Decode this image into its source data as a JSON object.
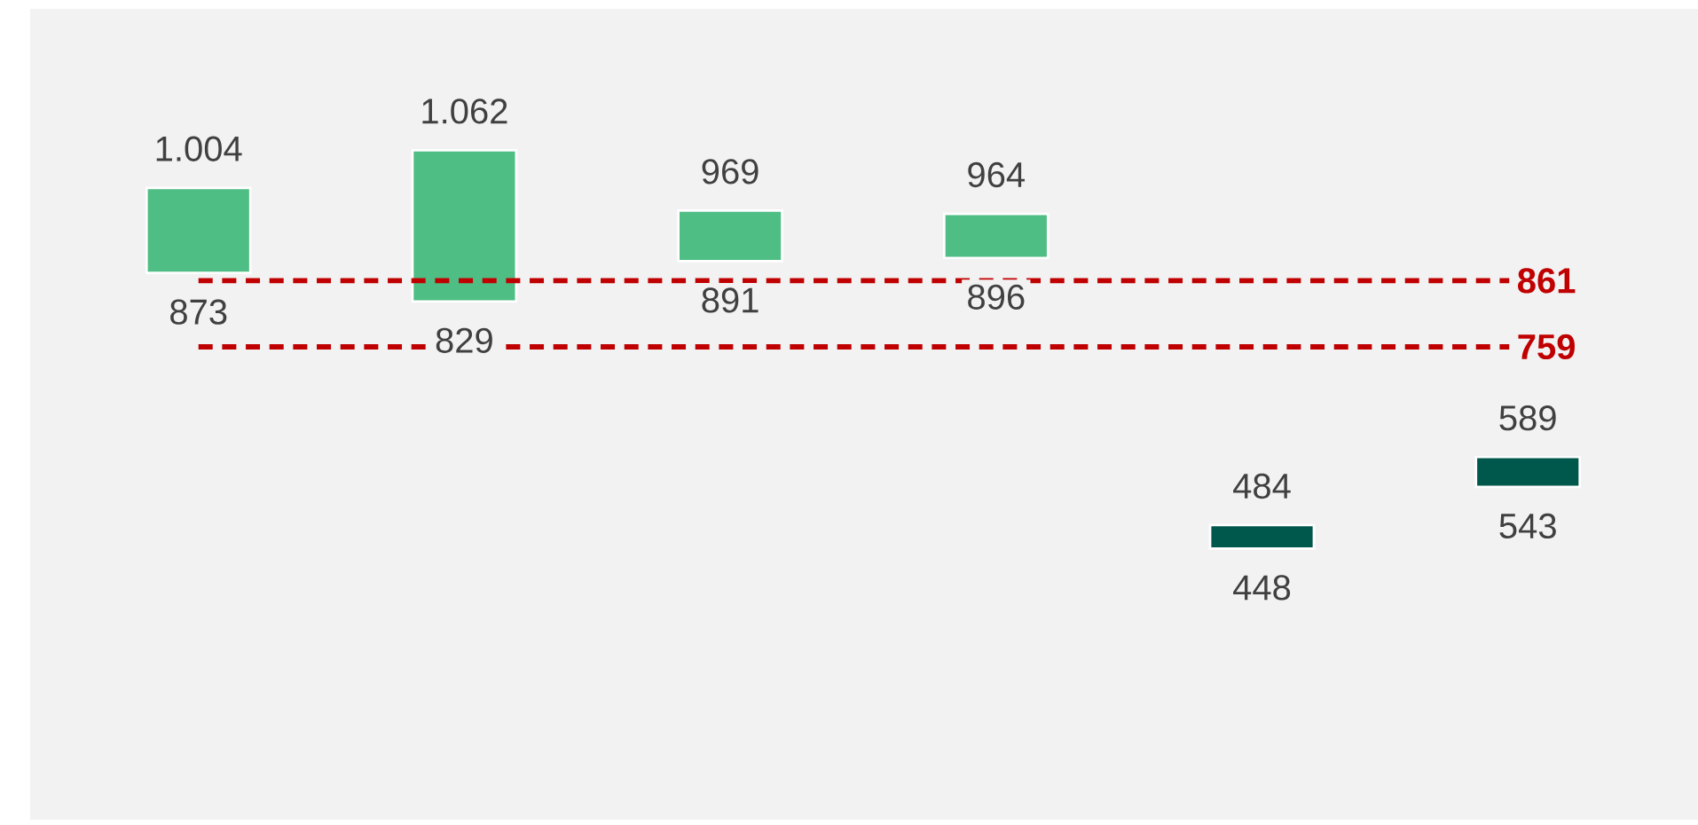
{
  "chart_data": {
    "type": "bar",
    "categories": [
      null,
      null,
      null,
      null,
      null,
      null
    ],
    "base": [
      873,
      829,
      891,
      896,
      448,
      543
    ],
    "values": [
      131,
      233,
      78,
      68,
      36,
      46
    ],
    "colors": [
      "#4fbe84",
      "#4fbe84",
      "#4fbe84",
      "#4fbe84",
      "#00574b",
      "#00574b"
    ],
    "value_labels": [
      "1.004",
      "1.062",
      "969",
      "964",
      "484",
      "589"
    ],
    "annotations": [
      {
        "text": "873",
        "y": 873
      },
      {
        "text": "829",
        "y": 829
      },
      {
        "text": "891",
        "y": 891
      },
      {
        "text": "896",
        "y": 896
      },
      {
        "text": "448",
        "y": 448
      },
      {
        "text": "543",
        "y": 543
      }
    ],
    "ref_lines": [
      {
        "axis": "y",
        "value": 861,
        "label": "861",
        "color": "#c00000",
        "line_style": "dashed"
      },
      {
        "axis": "y",
        "value": 759,
        "label": "759",
        "color": "#c00000",
        "line_style": "dashed"
      }
    ],
    "ylim": [
      30,
      1280
    ],
    "tick_labels": false
  }
}
